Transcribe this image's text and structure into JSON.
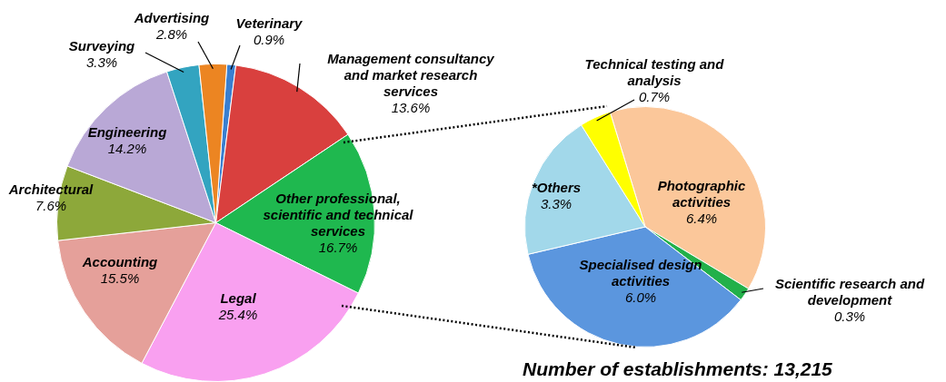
{
  "chart_data": [
    {
      "type": "pie",
      "categories": [
        "Veterinary",
        "Management consultancy and market research services",
        "Other professional, scientific and technical services",
        "Legal",
        "Accounting",
        "Architectural",
        "Engineering",
        "Surveying",
        "Advertising"
      ],
      "values": [
        0.9,
        13.6,
        16.7,
        25.4,
        15.5,
        7.6,
        14.2,
        3.3,
        2.8
      ],
      "value_labels": [
        "0.9%",
        "13.6%",
        "16.7%",
        "25.4%",
        "15.5%",
        "7.6%",
        "14.2%",
        "3.3%",
        "2.8%"
      ],
      "colors": [
        "#3a7fd0",
        "#d9403e",
        "#1fb84f",
        "#f9a0f0",
        "#e5a09a",
        "#8da83a",
        "#b9a8d6",
        "#33a4c0",
        "#ec8522"
      ]
    },
    {
      "type": "pie",
      "categories": [
        "Photographic activities",
        "Scientific research and development",
        "Specialised design activities",
        "*Others",
        "Technical testing and analysis"
      ],
      "values": [
        6.4,
        0.3,
        6.0,
        3.3,
        0.7
      ],
      "value_labels": [
        "6.4%",
        "0.3%",
        "6.0%",
        "3.3%",
        "0.7%"
      ],
      "colors": [
        "#fbc79a",
        "#22b04a",
        "#5b96de",
        "#a2d8ea",
        "#ffff00"
      ],
      "annotations": [
        "Number of establishments: 13,215"
      ]
    }
  ]
}
